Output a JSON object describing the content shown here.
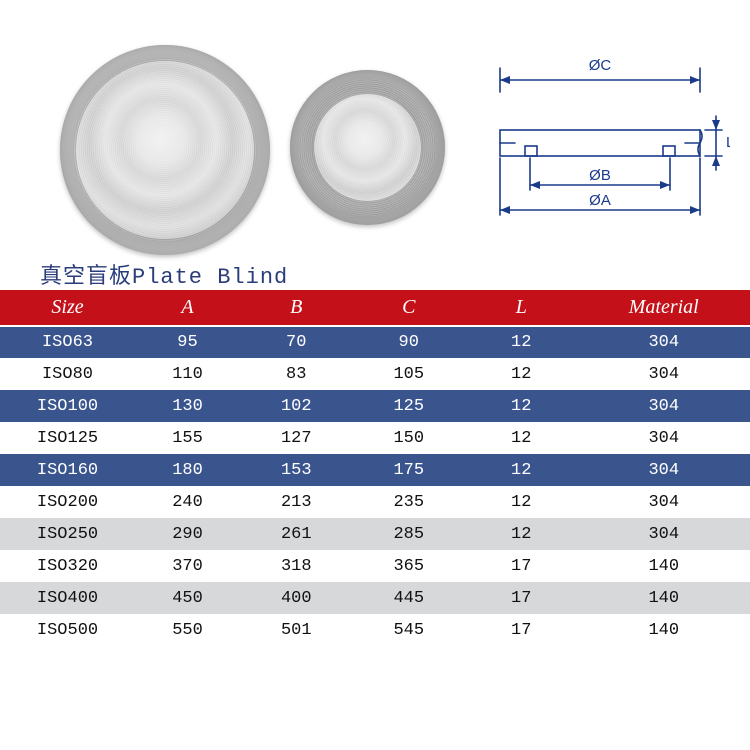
{
  "title": "真空盲板Plate Blind",
  "diagram": {
    "labels": {
      "top": "ØC",
      "mid": "ØB",
      "bottom": "ØA",
      "right": "L"
    },
    "stroke": "#1a3a8a",
    "stroke_width": 1.6
  },
  "table": {
    "header_bg": "#c41018",
    "header_fg": "#ffffff",
    "row_colors": {
      "dark": {
        "bg": "#3a558e",
        "fg": "#ffffff"
      },
      "light": {
        "bg": "#ffffff",
        "fg": "#111111"
      },
      "grey": {
        "bg": "#d7d8da",
        "fg": "#111111"
      }
    },
    "columns": [
      "Size",
      "A",
      "B",
      "C",
      "L",
      "Material"
    ],
    "rows": [
      {
        "style": "dark",
        "cells": [
          "ISO63",
          "95",
          "70",
          "90",
          "12",
          "304"
        ]
      },
      {
        "style": "light",
        "cells": [
          "ISO80",
          "110",
          "83",
          "105",
          "12",
          "304"
        ]
      },
      {
        "style": "dark",
        "cells": [
          "ISO100",
          "130",
          "102",
          "125",
          "12",
          "304"
        ]
      },
      {
        "style": "light",
        "cells": [
          "ISO125",
          "155",
          "127",
          "150",
          "12",
          "304"
        ]
      },
      {
        "style": "dark",
        "cells": [
          "ISO160",
          "180",
          "153",
          "175",
          "12",
          "304"
        ]
      },
      {
        "style": "light",
        "cells": [
          "ISO200",
          "240",
          "213",
          "235",
          "12",
          "304"
        ]
      },
      {
        "style": "grey",
        "cells": [
          "ISO250",
          "290",
          "261",
          "285",
          "12",
          "304"
        ]
      },
      {
        "style": "light",
        "cells": [
          "ISO320",
          "370",
          "318",
          "365",
          "17",
          "140"
        ]
      },
      {
        "style": "grey",
        "cells": [
          "ISO400",
          "450",
          "400",
          "445",
          "17",
          "140"
        ]
      },
      {
        "style": "light",
        "cells": [
          "ISO500",
          "550",
          "501",
          "545",
          "17",
          "140"
        ]
      }
    ]
  }
}
